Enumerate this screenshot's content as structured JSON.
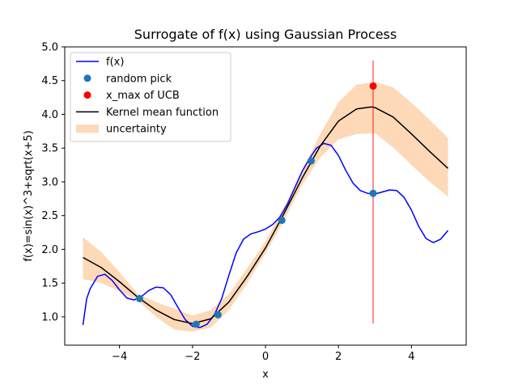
{
  "chart_data": {
    "type": "line",
    "title": "Surrogate of f(x) using Gaussian Process",
    "xlabel": "x",
    "ylabel": "f(x)=sin(x)^3+sqrt(x+5)",
    "xlim": [
      -5.5,
      5.5
    ],
    "ylim": [
      0.58,
      5.0
    ],
    "xticks": [
      -4,
      -2,
      0,
      2,
      4
    ],
    "xtick_labels": [
      "−4",
      "−2",
      "0",
      "2",
      "4"
    ],
    "yticks": [
      1.0,
      1.5,
      2.0,
      2.5,
      3.0,
      3.5,
      4.0,
      4.5,
      5.0
    ],
    "ytick_labels": [
      "1.0",
      "1.5",
      "2.0",
      "2.5",
      "3.0",
      "3.5",
      "4.0",
      "4.5",
      "5.0"
    ],
    "grid": false,
    "legend_position": "top-left",
    "series": [
      {
        "name": "f(x)",
        "kind": "line",
        "color": "#0000ff",
        "x": [
          -5.0,
          -4.9,
          -4.8,
          -4.6,
          -4.4,
          -4.2,
          -4.0,
          -3.8,
          -3.6,
          -3.4,
          -3.2,
          -3.0,
          -2.8,
          -2.6,
          -2.4,
          -2.2,
          -2.0,
          -1.8,
          -1.6,
          -1.4,
          -1.2,
          -1.0,
          -0.8,
          -0.6,
          -0.4,
          -0.2,
          0.0,
          0.2,
          0.4,
          0.6,
          0.8,
          1.0,
          1.2,
          1.4,
          1.6,
          1.8,
          2.0,
          2.2,
          2.4,
          2.6,
          2.8,
          3.0,
          3.2,
          3.4,
          3.6,
          3.8,
          4.0,
          4.2,
          4.4,
          4.6,
          4.8,
          5.0
        ],
        "y": [
          0.88,
          1.27,
          1.42,
          1.6,
          1.63,
          1.54,
          1.4,
          1.28,
          1.25,
          1.3,
          1.39,
          1.44,
          1.43,
          1.33,
          1.14,
          0.96,
          0.86,
          0.84,
          0.89,
          1.03,
          1.27,
          1.62,
          1.95,
          2.15,
          2.23,
          2.26,
          2.3,
          2.37,
          2.48,
          2.67,
          2.91,
          3.15,
          3.34,
          3.5,
          3.57,
          3.54,
          3.39,
          3.17,
          2.98,
          2.87,
          2.83,
          2.82,
          2.85,
          2.88,
          2.87,
          2.77,
          2.58,
          2.34,
          2.16,
          2.1,
          2.15,
          2.28
        ]
      },
      {
        "name": "random pick",
        "kind": "scatter",
        "color": "#1f77b4",
        "x": [
          -3.45,
          -1.9,
          -1.3,
          0.45,
          1.25,
          2.95
        ],
        "y": [
          1.27,
          0.89,
          1.03,
          2.43,
          3.31,
          2.83
        ]
      },
      {
        "name": "x_max of UCB",
        "kind": "scatter",
        "color": "#ff0000",
        "x": [
          2.95
        ],
        "y": [
          4.42
        ]
      },
      {
        "name": "Kernel mean function",
        "kind": "line",
        "color": "#000000",
        "x": [
          -5.0,
          -4.5,
          -4.0,
          -3.5,
          -3.0,
          -2.5,
          -2.0,
          -1.5,
          -1.0,
          -0.5,
          0.0,
          0.5,
          1.0,
          1.5,
          2.0,
          2.5,
          2.9,
          3.0,
          3.5,
          4.0,
          4.5,
          5.0
        ],
        "y": [
          1.88,
          1.73,
          1.52,
          1.29,
          1.1,
          0.96,
          0.9,
          0.97,
          1.22,
          1.6,
          2.02,
          2.52,
          3.05,
          3.53,
          3.9,
          4.08,
          4.11,
          4.1,
          3.96,
          3.71,
          3.45,
          3.2
        ]
      },
      {
        "name": "uncertainty",
        "kind": "band",
        "color": "#fdd9b8",
        "x": [
          -5.0,
          -4.5,
          -4.0,
          -3.5,
          -3.0,
          -2.5,
          -2.0,
          -1.5,
          -1.0,
          -0.5,
          0.0,
          0.5,
          1.0,
          1.5,
          2.0,
          2.5,
          3.0,
          3.5,
          4.0,
          4.5,
          5.0
        ],
        "lower": [
          1.56,
          1.5,
          1.38,
          1.24,
          1.0,
          0.81,
          0.78,
          0.84,
          1.1,
          1.5,
          1.94,
          2.42,
          2.95,
          3.36,
          3.63,
          3.71,
          3.72,
          3.51,
          3.25,
          3.0,
          2.78
        ],
        "upper": [
          2.18,
          1.96,
          1.66,
          1.34,
          1.22,
          1.12,
          1.02,
          1.1,
          1.34,
          1.72,
          2.12,
          2.62,
          3.16,
          3.71,
          4.18,
          4.44,
          4.48,
          4.4,
          4.17,
          3.92,
          3.65
        ]
      }
    ],
    "annotations": [
      {
        "kind": "vertical-line",
        "x": 2.95,
        "y_range": [
          0.9,
          4.8
        ],
        "color": "#ff0000",
        "opacity": 0.6
      }
    ]
  }
}
